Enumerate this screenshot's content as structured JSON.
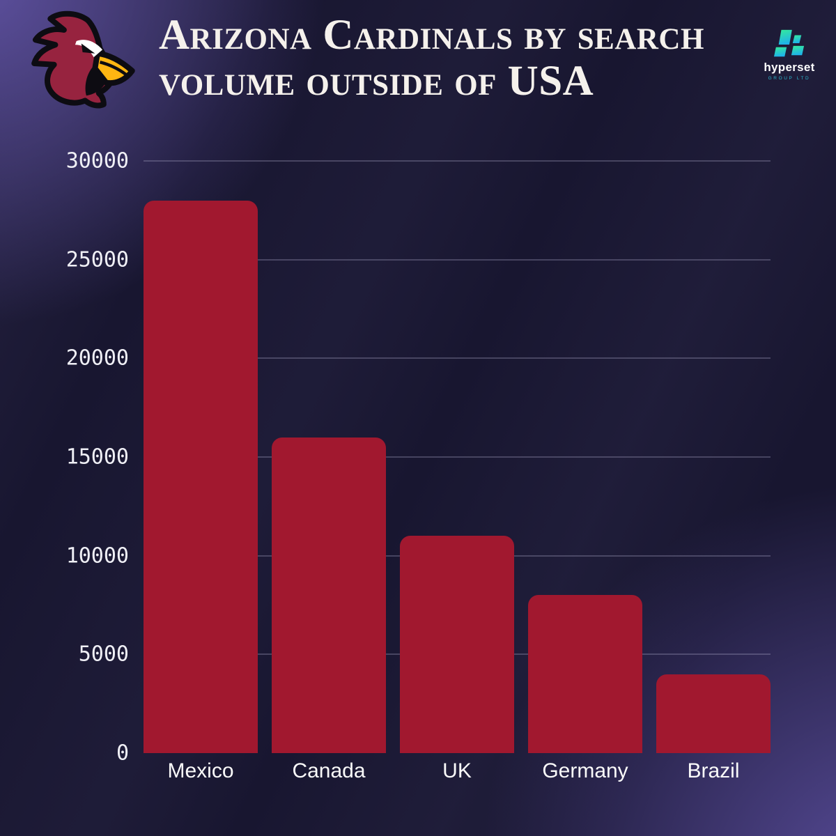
{
  "header": {
    "title_lines": [
      "Arizona Cardinals by search",
      "volume outside of USA"
    ],
    "team_logo": "arizona-cardinals-cardinal-head",
    "brand": {
      "name": "hyperset",
      "subtitle": "GROUP LTD"
    }
  },
  "colors": {
    "background": "#181630",
    "corner_glow": "#5D4F9A",
    "bar": "#A1182F",
    "gridline": "rgba(168,164,196,0.32)",
    "title_text": "#F5F1EC",
    "axis_text": "#EFEFF5",
    "team_red": "#97233F",
    "beak_yellow": "#FFB612",
    "brand_green": "#35EB9B",
    "brand_cyan": "#1FB4E8",
    "brand_subtitle_teal": "#2BB9CE"
  },
  "chart_data": {
    "type": "bar",
    "title": "Arizona Cardinals by search volume outside of USA",
    "categories": [
      "Mexico",
      "Canada",
      "UK",
      "Germany",
      "Brazil"
    ],
    "values": [
      28000,
      16000,
      11000,
      8000,
      4000
    ],
    "xlabel": "",
    "ylabel": "",
    "ylim": [
      0,
      30000
    ],
    "yticks": [
      0,
      5000,
      10000,
      15000,
      20000,
      25000,
      30000
    ],
    "grid": "horizontal-gridlines",
    "legend": "none",
    "bar_color": "#A1182F"
  }
}
